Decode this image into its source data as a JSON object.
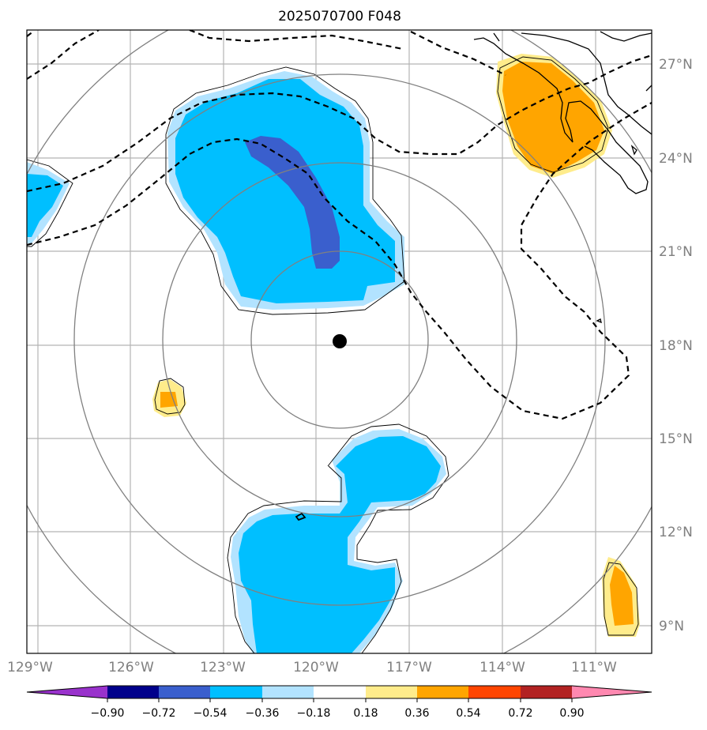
{
  "title": "2025070700 F048",
  "axes": {
    "lon_ticks": [
      "129°W",
      "126°W",
      "123°W",
      "120°W",
      "117°W",
      "114°W",
      "111°W"
    ],
    "lat_ticks": [
      "27°N",
      "24°N",
      "21°N",
      "18°N",
      "15°N",
      "12°N",
      "9°N"
    ]
  },
  "storm_center": {
    "lon": -119.9,
    "lat": 18.1
  },
  "colorbar": {
    "levels": [
      "−0.90",
      "−0.72",
      "−0.54",
      "−0.36",
      "−0.18",
      "0.18",
      "0.36",
      "0.54",
      "0.72",
      "0.90"
    ],
    "colors": [
      "#9932cc",
      "#00008b",
      "#3a5fcd",
      "#00bfff",
      "#b2e3ff",
      "#ffffff",
      "#ffec8b",
      "#ffa500",
      "#ff4500",
      "#b22222",
      "#ff88b0"
    ]
  }
}
